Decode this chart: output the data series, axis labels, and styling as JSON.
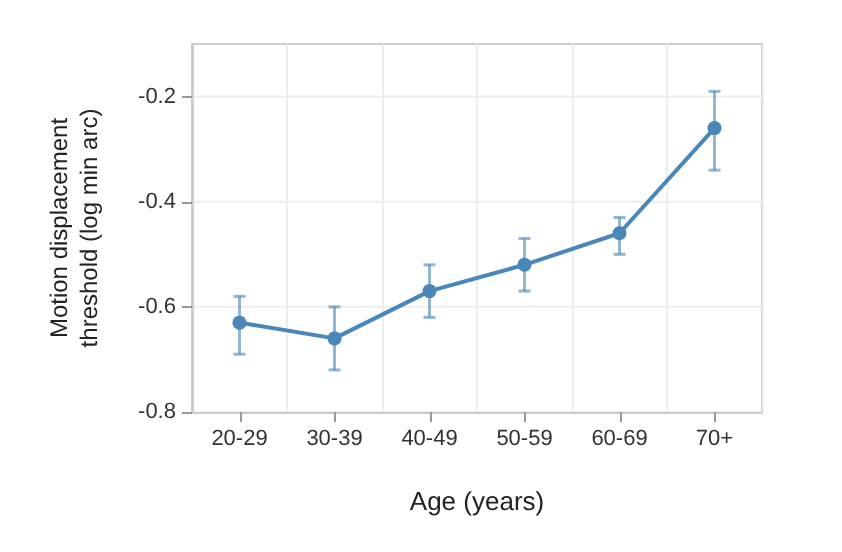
{
  "chart_data": {
    "type": "line",
    "xlabel": "Age (years)",
    "ylabel": "Motion displacement\nthreshold (log min arc)",
    "categories": [
      "20-29",
      "30-39",
      "40-49",
      "50-59",
      "60-69",
      "70+"
    ],
    "series": [
      {
        "color": "#4a86b8",
        "values": [
          -0.63,
          -0.66,
          -0.57,
          -0.52,
          -0.46,
          -0.26
        ],
        "errors": [
          [
            -0.69,
            -0.58
          ],
          [
            -0.72,
            -0.6
          ],
          [
            -0.62,
            -0.52
          ],
          [
            -0.57,
            -0.47
          ],
          [
            -0.5,
            -0.43
          ],
          [
            -0.34,
            -0.19
          ]
        ]
      }
    ],
    "ylim": [
      -0.8,
      -0.1
    ],
    "yticks": [
      -0.8,
      -0.6,
      -0.4,
      -0.2
    ],
    "grid": true,
    "marker": "circle",
    "line_style": "solid"
  }
}
